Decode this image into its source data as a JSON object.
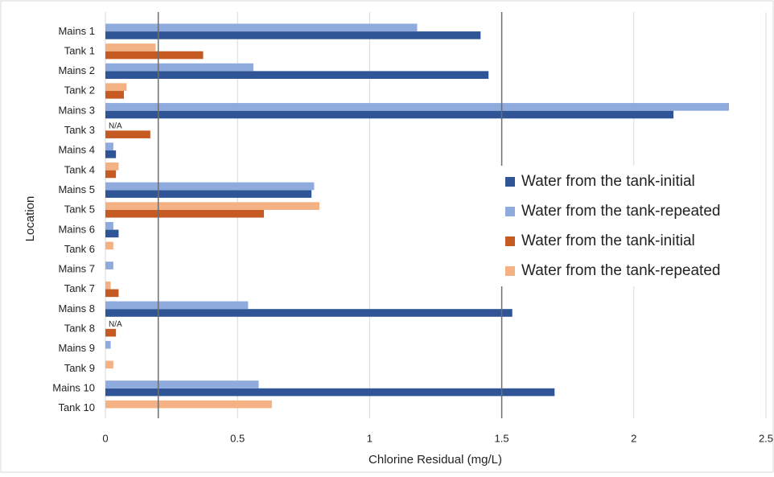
{
  "chart_data": {
    "type": "bar",
    "orientation": "horizontal",
    "xlabel": "Chlorine Residual (mg/L)",
    "ylabel": "Location",
    "categories": [
      "Mains 1",
      "Tank 1",
      "Mains 2",
      "Tank 2",
      "Mains 3",
      "Tank 3",
      "Mains 4",
      "Tank 4",
      "Mains 5",
      "Tank 5",
      "Mains 6",
      "Tank 6",
      "Mains 7",
      "Tank 7",
      "Mains 8",
      "Tank 8",
      "Mains 9",
      "Tank 9",
      "Mains 10",
      "Tank 10"
    ],
    "series": [
      {
        "name": "Water from the tank-initial",
        "color": "#2f5597",
        "values": [
          1.42,
          null,
          1.45,
          null,
          2.15,
          null,
          0.04,
          null,
          0.78,
          null,
          0.05,
          null,
          null,
          null,
          1.54,
          null,
          null,
          null,
          1.7,
          null
        ]
      },
      {
        "name": "Water from the tank-repeated",
        "color": "#8faadc",
        "values": [
          1.18,
          null,
          0.56,
          null,
          2.36,
          null,
          0.03,
          null,
          0.79,
          null,
          0.03,
          null,
          0.03,
          null,
          0.54,
          null,
          0.02,
          null,
          0.58,
          null
        ]
      },
      {
        "name": "Water from the tank-initial",
        "color": "#c55a22",
        "values": [
          null,
          0.37,
          null,
          0.07,
          null,
          0.17,
          null,
          0.04,
          null,
          0.6,
          null,
          null,
          null,
          0.05,
          null,
          0.04,
          null,
          null,
          null,
          null
        ]
      },
      {
        "name": "Water from the tank-repeated",
        "color": "#f4b183",
        "values": [
          null,
          0.19,
          null,
          0.08,
          null,
          null,
          null,
          0.05,
          null,
          0.81,
          null,
          0.03,
          null,
          0.02,
          null,
          null,
          null,
          0.03,
          null,
          0.63
        ]
      }
    ],
    "annotations": [
      {
        "text": "N/A",
        "category": "Tank 3"
      },
      {
        "text": "N/A",
        "category": "Tank 8"
      }
    ],
    "reference_lines": [
      0.2,
      1.5
    ],
    "xlim": [
      0,
      2.5
    ],
    "xticks": [
      0,
      0.5,
      1,
      1.5,
      2,
      2.5
    ],
    "grid": true,
    "legend": "right"
  }
}
